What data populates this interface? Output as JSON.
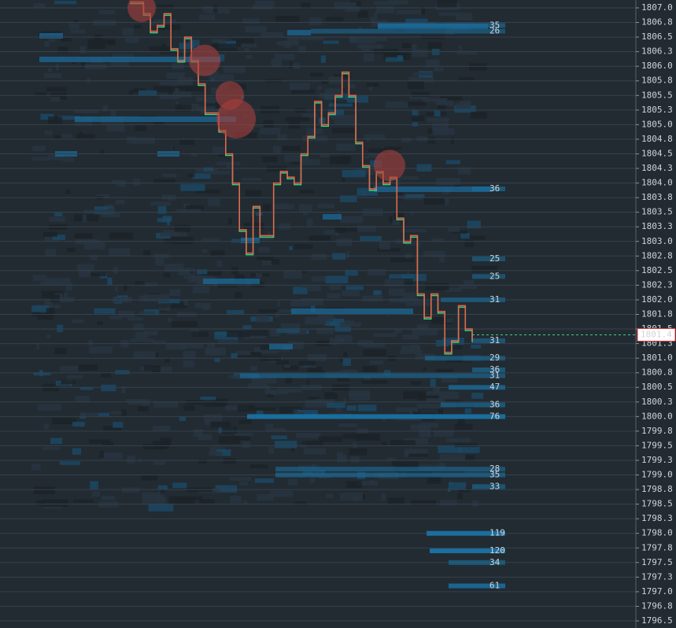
{
  "chart_data": {
    "type": "line",
    "values": [
      1807.1,
      1807.1,
      1806.9,
      1806.6,
      1806.7,
      1806.9,
      1806.3,
      1806.1,
      1806.5,
      1806.1,
      1805.7,
      1805.2,
      1805.2,
      1804.9,
      1804.5,
      1804.0,
      1803.2,
      1802.8,
      1803.6,
      1803.1,
      1803.1,
      1804.0,
      1804.2,
      1804.1,
      1804.0,
      1804.5,
      1804.8,
      1805.4,
      1805.0,
      1805.2,
      1805.5,
      1805.9,
      1805.5,
      1804.7,
      1804.3,
      1803.9,
      1804.2,
      1804.0,
      1804.1,
      1803.4,
      1803.0,
      1803.1,
      1802.1,
      1801.7,
      1802.1,
      1801.8,
      1801.1,
      1801.3,
      1801.9,
      1801.5,
      1801.3
    ],
    "color": "#e8654a",
    "color2": "#3fcf7f",
    "trades": {
      "values": [
        1807.0,
        1806.1,
        1805.5,
        1805.1,
        1804.3
      ],
      "sizes": [
        18,
        20,
        18,
        25,
        20
      ],
      "color": "#a8403c"
    },
    "levels": {
      "prices": [
        1806.7,
        1806.6,
        1803.9,
        1802.7,
        1802.4,
        1802.0,
        1801.3,
        1801.0,
        1800.8,
        1800.7,
        1800.5,
        1800.2,
        1800.0,
        1799.1,
        1799.0,
        1798.8,
        1798.0,
        1797.7,
        1797.5,
        1797.1
      ],
      "volumes": [
        35,
        26,
        36,
        25,
        25,
        31,
        31,
        29,
        36,
        31,
        47,
        36,
        76,
        28,
        35,
        33,
        119,
        120,
        34,
        61
      ],
      "color": "#1a6f9e"
    },
    "last_price": 1801.4,
    "ylim": [
      1796.5,
      1807.0
    ],
    "yticks": [
      {
        "value": 1807.0,
        "label": "1807.0"
      },
      {
        "value": 1806.75,
        "label": "1806.8"
      },
      {
        "value": 1806.5,
        "label": "1806.5"
      },
      {
        "value": 1806.25,
        "label": "1806.3"
      },
      {
        "value": 1806.0,
        "label": "1806.0"
      },
      {
        "value": 1805.75,
        "label": "1805.8"
      },
      {
        "value": 1805.5,
        "label": "1805.5"
      },
      {
        "value": 1805.25,
        "label": "1805.3"
      },
      {
        "value": 1805.0,
        "label": "1805.0"
      },
      {
        "value": 1804.75,
        "label": "1804.8"
      },
      {
        "value": 1804.5,
        "label": "1804.5"
      },
      {
        "value": 1804.25,
        "label": "1804.3"
      },
      {
        "value": 1804.0,
        "label": "1804.0"
      },
      {
        "value": 1803.75,
        "label": "1803.8"
      },
      {
        "value": 1803.5,
        "label": "1803.5"
      },
      {
        "value": 1803.25,
        "label": "1803.3"
      },
      {
        "value": 1803.0,
        "label": "1803.0"
      },
      {
        "value": 1802.75,
        "label": "1802.8"
      },
      {
        "value": 1802.5,
        "label": "1802.5"
      },
      {
        "value": 1802.25,
        "label": "1802.3"
      },
      {
        "value": 1802.0,
        "label": "1802.0"
      },
      {
        "value": 1801.75,
        "label": "1801.8"
      },
      {
        "value": 1801.5,
        "label": "1801.5"
      },
      {
        "value": 1801.25,
        "label": "1801.3"
      },
      {
        "value": 1801.0,
        "label": "1801.0"
      },
      {
        "value": 1800.75,
        "label": "1800.8"
      },
      {
        "value": 1800.5,
        "label": "1800.5"
      },
      {
        "value": 1800.25,
        "label": "1800.3"
      },
      {
        "value": 1800.0,
        "label": "1800.0"
      },
      {
        "value": 1799.75,
        "label": "1799.8"
      },
      {
        "value": 1799.5,
        "label": "1799.5"
      },
      {
        "value": 1799.25,
        "label": "1799.3"
      },
      {
        "value": 1799.0,
        "label": "1799.0"
      },
      {
        "value": 1798.75,
        "label": "1798.8"
      },
      {
        "value": 1798.5,
        "label": "1798.5"
      },
      {
        "value": 1798.25,
        "label": "1798.3"
      },
      {
        "value": 1798.0,
        "label": "1798.0"
      },
      {
        "value": 1797.75,
        "label": "1797.8"
      },
      {
        "value": 1797.5,
        "label": "1797.5"
      },
      {
        "value": 1797.25,
        "label": "1797.3"
      },
      {
        "value": 1797.0,
        "label": "1797.0"
      },
      {
        "value": 1796.75,
        "label": "1796.8"
      },
      {
        "value": 1796.5,
        "label": "1796.5"
      }
    ],
    "grid": true
  }
}
